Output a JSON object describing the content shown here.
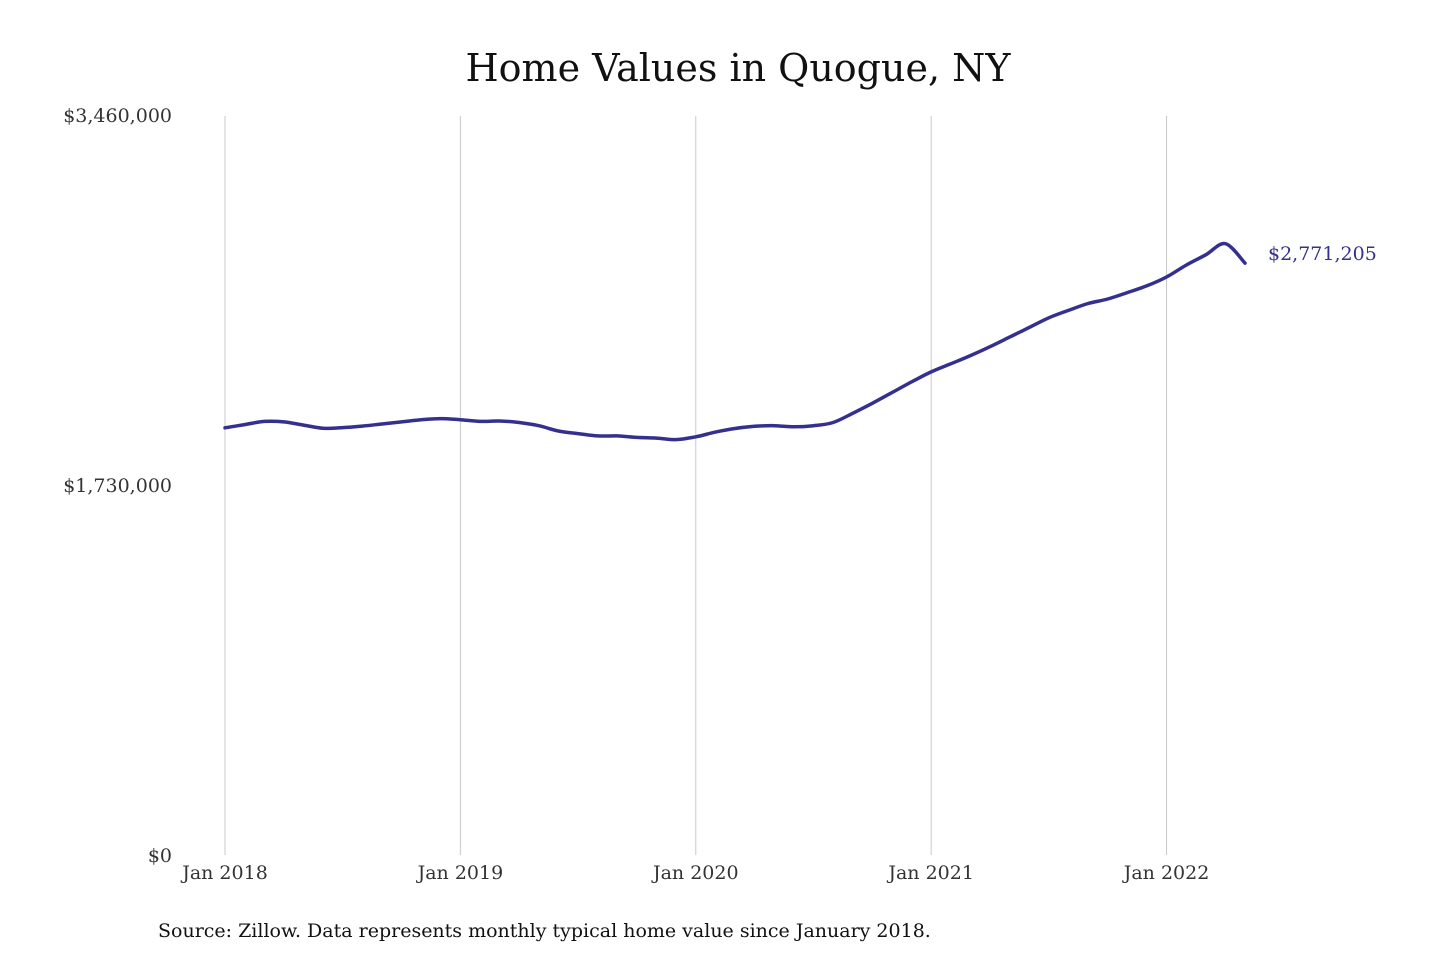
{
  "colors": {
    "line": "#35308f",
    "grid": "#c9c9c9",
    "text": "#111111"
  },
  "chart_data": {
    "type": "line",
    "title": "Home Values in Quogue, NY",
    "xlabel": "",
    "ylabel": "",
    "x_tick_labels": [
      "Jan 2018",
      "Jan 2019",
      "Jan 2020",
      "Jan 2021",
      "Jan 2022"
    ],
    "y_tick_labels": [
      "$3,460,000",
      "$1,730,000",
      "$0"
    ],
    "ylim": [
      0,
      3460000
    ],
    "xlim": [
      "2018-01",
      "2022-05"
    ],
    "grid": "vertical lines at January of each year",
    "legend": "none",
    "end_label": "$2,771,205",
    "source_note": "Source: Zillow. Data represents monthly typical home value since January 2018.",
    "series": [
      {
        "x": [
          "2018-01",
          "2018-02",
          "2018-03",
          "2018-04",
          "2018-05",
          "2018-06",
          "2018-07",
          "2018-08",
          "2018-09",
          "2018-10",
          "2018-11",
          "2018-12",
          "2019-01",
          "2019-02",
          "2019-03",
          "2019-04",
          "2019-05",
          "2019-06",
          "2019-07",
          "2019-08",
          "2019-09",
          "2019-10",
          "2019-11",
          "2019-12",
          "2020-01",
          "2020-02",
          "2020-03",
          "2020-04",
          "2020-05",
          "2020-06",
          "2020-07",
          "2020-08",
          "2020-09",
          "2020-10",
          "2020-11",
          "2020-12",
          "2021-01",
          "2021-02",
          "2021-03",
          "2021-04",
          "2021-05",
          "2021-06",
          "2021-07",
          "2021-08",
          "2021-09",
          "2021-10",
          "2021-11",
          "2021-12",
          "2022-01",
          "2022-02",
          "2022-03",
          "2022-04",
          "2022-05"
        ],
        "values": [
          2000000,
          2015000,
          2030000,
          2028000,
          2013000,
          1998000,
          2001000,
          2008000,
          2018000,
          2028000,
          2038000,
          2043000,
          2038000,
          2030000,
          2032000,
          2025000,
          2010000,
          1985000,
          1973000,
          1962000,
          1962000,
          1955000,
          1952000,
          1945000,
          1958000,
          1980000,
          1997000,
          2007000,
          2010000,
          2005000,
          2010000,
          2025000,
          2068000,
          2115000,
          2165000,
          2215000,
          2262000,
          2300000,
          2338000,
          2380000,
          2425000,
          2470000,
          2515000,
          2550000,
          2582000,
          2603000,
          2633000,
          2665000,
          2706000,
          2762000,
          2810000,
          2862000,
          2771205
        ]
      }
    ]
  }
}
